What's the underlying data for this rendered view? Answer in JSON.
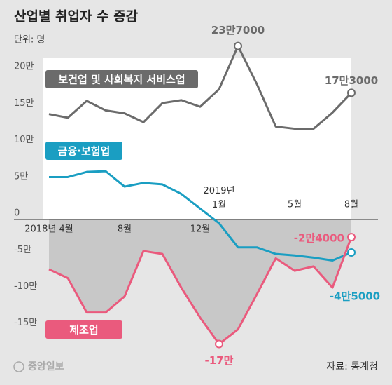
{
  "chart_data": {
    "type": "line",
    "title": "산업별 취업자 수 증감",
    "subtitle": "단위: 명",
    "source": "자료: 통계청",
    "logo": "중앙일보",
    "categories": [
      "2018년 4월",
      null,
      null,
      null,
      "8월",
      null,
      null,
      null,
      "12월",
      "2019년\n1월",
      null,
      null,
      null,
      "5월",
      null,
      null,
      "8월"
    ],
    "ylim": [
      -180000,
      250000
    ],
    "yticks": [
      {
        "value": 200000,
        "label": "20만"
      },
      {
        "value": 150000,
        "label": "15만"
      },
      {
        "value": 100000,
        "label": "10만"
      },
      {
        "value": 50000,
        "label": "5만"
      },
      0,
      {
        "value": -50000,
        "label": "-5만"
      },
      {
        "value": -100000,
        "label": "-10만"
      },
      {
        "value": -150000,
        "label": "-15만"
      }
    ],
    "series": [
      {
        "name": "보건업 및 사회복지 서비스업",
        "color": "#6b6b6b",
        "values": [
          144000,
          139000,
          162000,
          149000,
          145000,
          133000,
          159000,
          163000,
          154000,
          178000,
          237000,
          185000,
          127000,
          124000,
          124000,
          146000,
          173000
        ],
        "value_labels": [
          null,
          null,
          null,
          null,
          null,
          null,
          null,
          null,
          null,
          null,
          "23만7000",
          null,
          null,
          null,
          null,
          null,
          "17만3000"
        ]
      },
      {
        "name": "금융·보험업",
        "color": "#1a9ec2",
        "values": [
          58000,
          58000,
          65000,
          66000,
          45000,
          50000,
          48000,
          35000,
          15000,
          -5000,
          -38000,
          -38000,
          -47000,
          -49000,
          -52000,
          -56000,
          -45000
        ],
        "value_labels": [
          null,
          null,
          null,
          null,
          null,
          null,
          null,
          null,
          null,
          null,
          null,
          null,
          null,
          null,
          null,
          null,
          "-4만5000"
        ]
      },
      {
        "name": "제조업",
        "color": "#ea5a7d",
        "values": [
          -68000,
          -80000,
          -127000,
          -127000,
          -105000,
          -43000,
          -47000,
          -93000,
          -134000,
          -170000,
          -150000,
          -102000,
          -53000,
          -70000,
          -64000,
          -93000,
          -24000
        ],
        "value_labels": [
          null,
          null,
          null,
          null,
          null,
          null,
          null,
          null,
          null,
          "-17만",
          null,
          null,
          null,
          null,
          null,
          null,
          "-2만4000"
        ]
      }
    ]
  }
}
